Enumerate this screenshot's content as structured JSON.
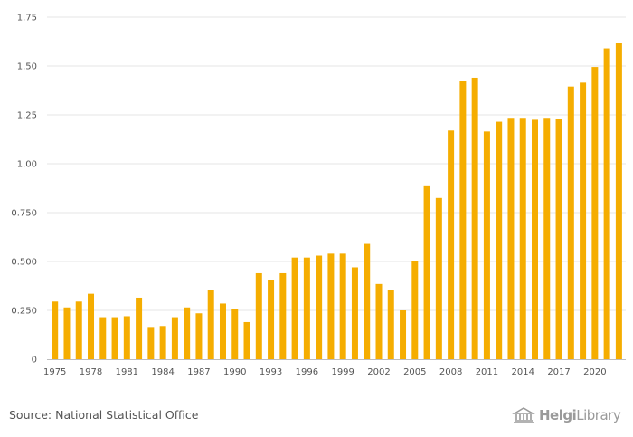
{
  "chart_data": {
    "type": "bar",
    "title": "",
    "xlabel": "",
    "ylabel": "",
    "ylim": [
      0,
      1.75
    ],
    "grid": true,
    "legend": "none",
    "bar_color": "#f5ad00",
    "y_ticks": [
      "0",
      "0.250",
      "0.500",
      "0.750",
      "1.00",
      "1.25",
      "1.50",
      "1.75"
    ],
    "x_tick_labels": [
      "1975",
      "1978",
      "1981",
      "1984",
      "1987",
      "1990",
      "1993",
      "1996",
      "1999",
      "2002",
      "2005",
      "2008",
      "2011",
      "2014",
      "2017",
      "2020"
    ],
    "categories": [
      1975,
      1976,
      1977,
      1978,
      1979,
      1980,
      1981,
      1982,
      1983,
      1984,
      1985,
      1986,
      1987,
      1988,
      1989,
      1990,
      1991,
      1992,
      1993,
      1994,
      1995,
      1996,
      1997,
      1998,
      1999,
      2000,
      2001,
      2002,
      2003,
      2004,
      2005,
      2006,
      2007,
      2008,
      2009,
      2010,
      2011,
      2012,
      2013,
      2014,
      2015,
      2016,
      2017,
      2018,
      2019,
      2020,
      2021,
      2022
    ],
    "values": [
      0.295,
      0.265,
      0.295,
      0.335,
      0.215,
      0.215,
      0.22,
      0.315,
      0.165,
      0.17,
      0.215,
      0.265,
      0.235,
      0.355,
      0.285,
      0.255,
      0.19,
      0.44,
      0.405,
      0.44,
      0.52,
      0.52,
      0.53,
      0.54,
      0.54,
      0.47,
      0.59,
      0.385,
      0.355,
      0.25,
      0.5,
      0.885,
      0.825,
      1.17,
      1.425,
      1.44,
      1.165,
      1.215,
      1.235,
      1.235,
      1.225,
      1.235,
      1.23,
      1.395,
      1.415,
      1.495,
      1.59,
      1.62
    ]
  },
  "footer": {
    "source": "Source: National Statistical Office",
    "logo_text_bold": "Helgi",
    "logo_text": "Library"
  },
  "colors": {
    "bar": "#f5ad00",
    "grid": "#e6e6e6",
    "axis_text": "#555555",
    "logo": "#9a9a9a"
  }
}
